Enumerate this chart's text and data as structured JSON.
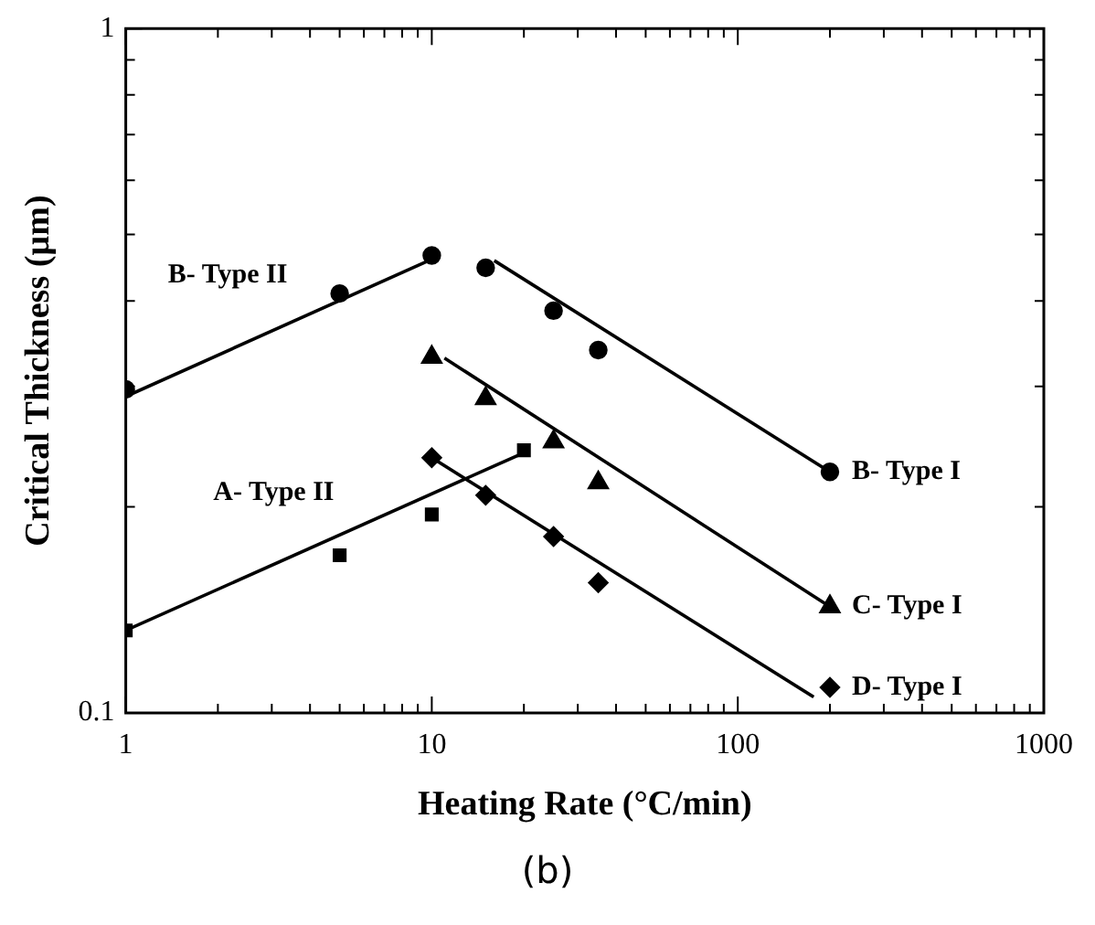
{
  "chart_data": {
    "type": "scatter",
    "xlabel": "Heating Rate (°C/min)",
    "ylabel": "Critical Thickness (µm)",
    "log": "xy",
    "grid": false,
    "legend": false,
    "xlim": [
      1,
      1000
    ],
    "ylim": [
      0.1,
      1
    ],
    "xticks": [
      1,
      {
        "value": 2,
        "label": null
      },
      {
        "value": 3,
        "label": null
      },
      {
        "value": 4,
        "label": null
      },
      {
        "value": 5,
        "label": null
      },
      {
        "value": 6,
        "label": null
      },
      {
        "value": 7,
        "label": null
      },
      {
        "value": 8,
        "label": null
      },
      {
        "value": 9,
        "label": null
      },
      10,
      {
        "value": 20,
        "label": null
      },
      {
        "value": 30,
        "label": null
      },
      {
        "value": 40,
        "label": null
      },
      {
        "value": 50,
        "label": null
      },
      {
        "value": 60,
        "label": null
      },
      {
        "value": 70,
        "label": null
      },
      {
        "value": 80,
        "label": null
      },
      {
        "value": 90,
        "label": null
      },
      100,
      {
        "value": 200,
        "label": null
      },
      {
        "value": 300,
        "label": null
      },
      {
        "value": 400,
        "label": null
      },
      {
        "value": 500,
        "label": null
      },
      {
        "value": 600,
        "label": null
      },
      {
        "value": 700,
        "label": null
      },
      {
        "value": 800,
        "label": null
      },
      {
        "value": 900,
        "label": null
      },
      1000
    ],
    "yticks": [
      0.1,
      {
        "value": 0.2,
        "label": null
      },
      {
        "value": 0.3,
        "label": null
      },
      {
        "value": 0.4,
        "label": null
      },
      {
        "value": 0.5,
        "label": null
      },
      {
        "value": 0.6,
        "label": null
      },
      {
        "value": 0.7,
        "label": null
      },
      {
        "value": 0.8,
        "label": null
      },
      {
        "value": 0.9,
        "label": null
      },
      1
    ],
    "series": [
      {
        "type": "scatter",
        "name": "B- Type II",
        "marker": "circle",
        "color": "#000000",
        "x": [
          1,
          5,
          10
        ],
        "values": [
          0.297,
          0.41,
          0.466
        ]
      },
      {
        "type": "line",
        "marker": "none",
        "color": "#000000",
        "x": [
          1,
          10
        ],
        "values": [
          0.29,
          0.46
        ]
      },
      {
        "type": "scatter",
        "name": "B- Type I",
        "marker": "circle",
        "color": "#000000",
        "x": [
          15,
          25,
          35,
          200
        ],
        "values": [
          0.447,
          0.387,
          0.339,
          0.225
        ]
      },
      {
        "type": "line",
        "marker": "none",
        "color": "#000000",
        "x": [
          16,
          200
        ],
        "values": [
          0.458,
          0.225
        ]
      },
      {
        "type": "scatter",
        "name": "C- Type I",
        "marker": "triangle",
        "color": "#000000",
        "x": [
          10,
          15,
          25,
          35,
          200
        ],
        "values": [
          0.331,
          0.288,
          0.249,
          0.217,
          0.143
        ]
      },
      {
        "type": "line",
        "marker": "none",
        "color": "#000000",
        "x": [
          11,
          200
        ],
        "values": [
          0.33,
          0.143
        ]
      },
      {
        "type": "scatter",
        "name": "D- Type I",
        "marker": "diamond",
        "color": "#000000",
        "x": [
          10,
          15,
          25,
          35,
          200
        ],
        "values": [
          0.236,
          0.208,
          0.181,
          0.155,
          0.109
        ]
      },
      {
        "type": "line",
        "marker": "none",
        "color": "#000000",
        "x": [
          10,
          177
        ],
        "values": [
          0.236,
          0.1055
        ]
      },
      {
        "type": "scatter",
        "name": "A- Type II",
        "marker": "square",
        "color": "#000000",
        "x": [
          1,
          5,
          10,
          20
        ],
        "values": [
          0.132,
          0.17,
          0.195,
          0.242
        ]
      },
      {
        "type": "line",
        "marker": "none",
        "color": "#000000",
        "x": [
          1,
          20
        ],
        "values": [
          0.132,
          0.24
        ]
      }
    ],
    "annotations": [
      "(b)"
    ]
  }
}
